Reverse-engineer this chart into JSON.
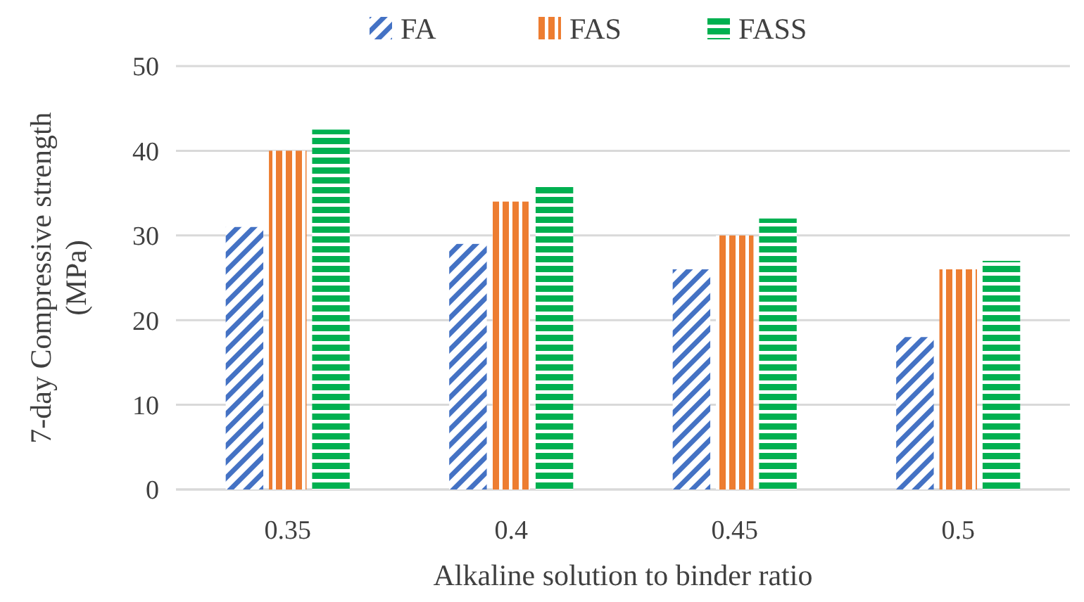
{
  "chart_data": {
    "type": "bar",
    "xlabel": "Alkaline solution to binder ratio",
    "ylabel": "7-day Compressive strength (MPa)",
    "categories": [
      "0.35",
      "0.4",
      "0.45",
      "0.5"
    ],
    "series": [
      {
        "name": "FA",
        "color": "#4472c4",
        "values": [
          31,
          29,
          26,
          18
        ]
      },
      {
        "name": "FAS",
        "color": "#ed7d31",
        "values": [
          40,
          34,
          30,
          26
        ]
      },
      {
        "name": "FASS",
        "color": "#00b050",
        "values": [
          42.5,
          36,
          32,
          27
        ]
      }
    ],
    "ylim": [
      0,
      50
    ],
    "yticks": [
      0,
      10,
      20,
      30,
      40,
      50
    ],
    "grid": "y",
    "legend": "top"
  }
}
